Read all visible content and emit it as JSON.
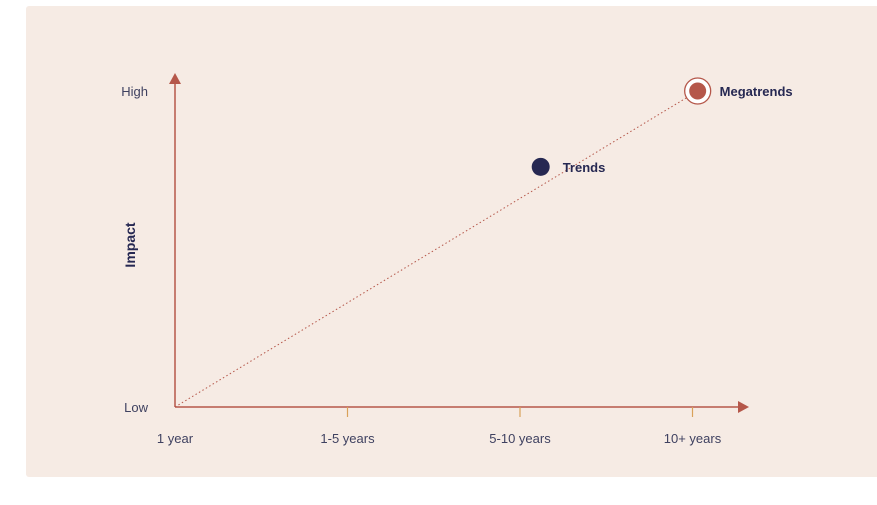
{
  "chart_data": {
    "type": "scatter",
    "title": "",
    "ylabel": "Impact",
    "xlabel": "",
    "x_categories": [
      "1 year",
      "1-5 years",
      "5-10 years",
      "10+ years"
    ],
    "y_categories": [
      "Low",
      "High"
    ],
    "points": [
      {
        "label": "Trends",
        "x": 2.12,
        "y": 0.76,
        "style": "solid",
        "color": "#262852"
      },
      {
        "label": "Megatrends",
        "x": 3.03,
        "y": 1.0,
        "style": "ring",
        "color": "#b5574a"
      }
    ],
    "trend_line": {
      "from": [
        0,
        0
      ],
      "to": [
        3.03,
        1.0
      ],
      "style": "dotted"
    },
    "grid": false,
    "legend": "none"
  },
  "colors": {
    "background": "#f6ebe4",
    "axis": "#b5574a",
    "tick": "#d9a15a",
    "text": "#3f4160",
    "title": "#262852",
    "trends": "#262852",
    "megatrends": "#b5574a"
  }
}
